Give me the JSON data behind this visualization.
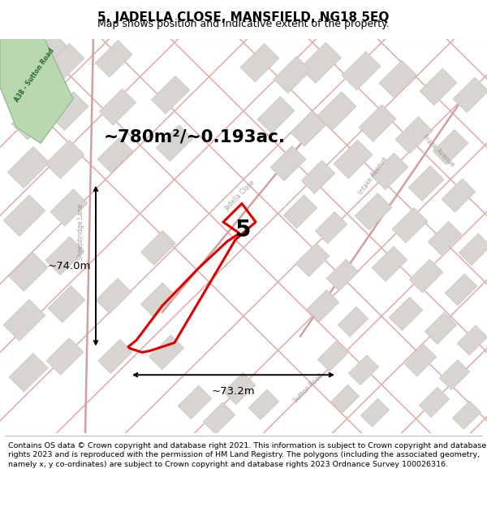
{
  "title": "5, JADELLA CLOSE, MANSFIELD, NG18 5EQ",
  "subtitle": "Map shows position and indicative extent of the property.",
  "footer": "Contains OS data © Crown copyright and database right 2021. This information is subject to Crown copyright and database rights 2023 and is reproduced with the permission of HM Land Registry. The polygons (including the associated geometry, namely x, y co-ordinates) are subject to Crown copyright and database rights 2023 Ordnance Survey 100026316.",
  "area_label": "~780m²/~0.193ac.",
  "width_label": "~73.2m",
  "height_label": "~74.0m",
  "property_number": "5",
  "map_bg": "#f5f2ee",
  "road_color": "#e8c4c4",
  "road_outline": "#d4aaaa",
  "building_fill": "#d8d5d0",
  "building_edge": "#c8c5c0",
  "green_fill": "#b8d8b0",
  "green_edge": "#90b890",
  "plot_color": "#dd0000",
  "title_fontsize": 11,
  "subtitle_fontsize": 9,
  "footer_fontsize": 6.8
}
